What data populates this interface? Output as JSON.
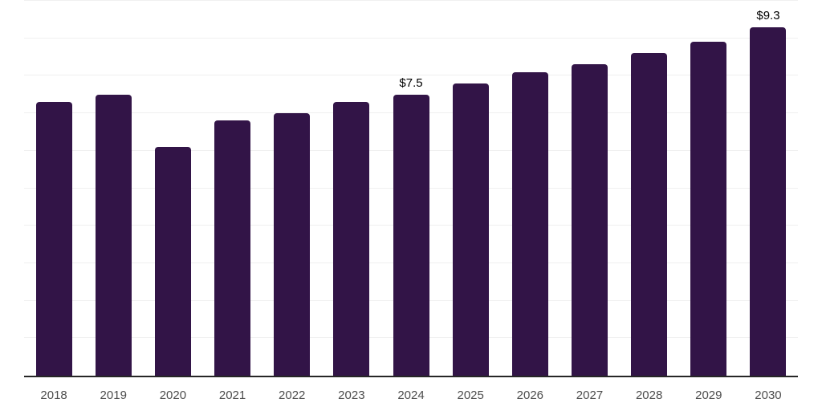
{
  "chart_data": {
    "type": "bar",
    "categories": [
      "2018",
      "2019",
      "2020",
      "2021",
      "2022",
      "2023",
      "2024",
      "2025",
      "2026",
      "2027",
      "2028",
      "2029",
      "2030"
    ],
    "values": [
      7.3,
      7.5,
      6.1,
      6.8,
      7.0,
      7.3,
      7.5,
      7.8,
      8.1,
      8.3,
      8.6,
      8.9,
      9.3
    ],
    "data_labels": {
      "2024": "$7.5",
      "2030": "$9.3"
    },
    "title": "",
    "xlabel": "",
    "ylabel": "",
    "ylim": [
      0,
      10
    ],
    "gridline_step": 1,
    "grid": "horizontal",
    "legend_position": "none",
    "colors": {
      "bar": "#321447",
      "axis": "#262626",
      "gridline": "#f0f0f0",
      "tick_label": "#4d4d4d",
      "data_label": "#000000",
      "background": "#ffffff"
    }
  }
}
